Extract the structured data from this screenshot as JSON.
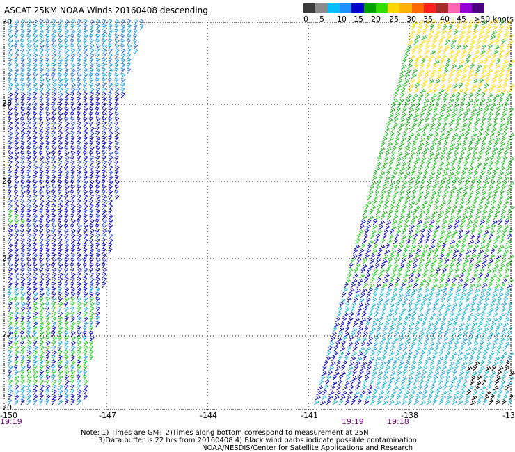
{
  "title": "ASCAT 25KM NOAA Winds 20160408 descending",
  "colorbar": {
    "colors": [
      "#3b3b3b",
      "#8c8c8c",
      "#00bfff",
      "#1e90ff",
      "#0000cd",
      "#00a000",
      "#33dd00",
      "#ffd700",
      "#ffb000",
      "#ff6a00",
      "#ff2020",
      "#a52a2a",
      "#ff69b4",
      "#9400d3",
      "#4b0082"
    ],
    "labels": [
      "0",
      "5",
      "10",
      "15",
      "20",
      "25",
      "30",
      "35",
      "40",
      "45",
      ">50 knots"
    ]
  },
  "latitudes": [
    "30",
    "28",
    "26",
    "24",
    "22",
    "20"
  ],
  "longitudes": [
    "-150",
    "-147",
    "-144",
    "-141",
    "-138",
    "-13"
  ],
  "times": [
    "19:19",
    "19:19",
    "19:18"
  ],
  "notes": {
    "line1": "Note: 1) Times are GMT 2)Times along bottom correspond to measurement at 25N",
    "line2": "3)Data buffer is 22 hrs from 20160408 4) Black wind barbs indicate possible contamination",
    "line3": "NOAA/NESDIS/Center for Satellite Applications and Research"
  },
  "swaths": [
    {
      "name": "west-swath",
      "color_zones": [
        "light-blue (10-15 kt) north",
        "dark-blue (15-20 kt) central",
        "green (20-25 kt) south"
      ]
    },
    {
      "name": "east-swath",
      "color_zones": [
        "yellow (25-30 kt) north",
        "green (20-25 kt) central",
        "dark-blue (15-20 kt) mid",
        "light-blue (10-15 kt) south",
        "black (contamination) south-east"
      ]
    }
  ]
}
